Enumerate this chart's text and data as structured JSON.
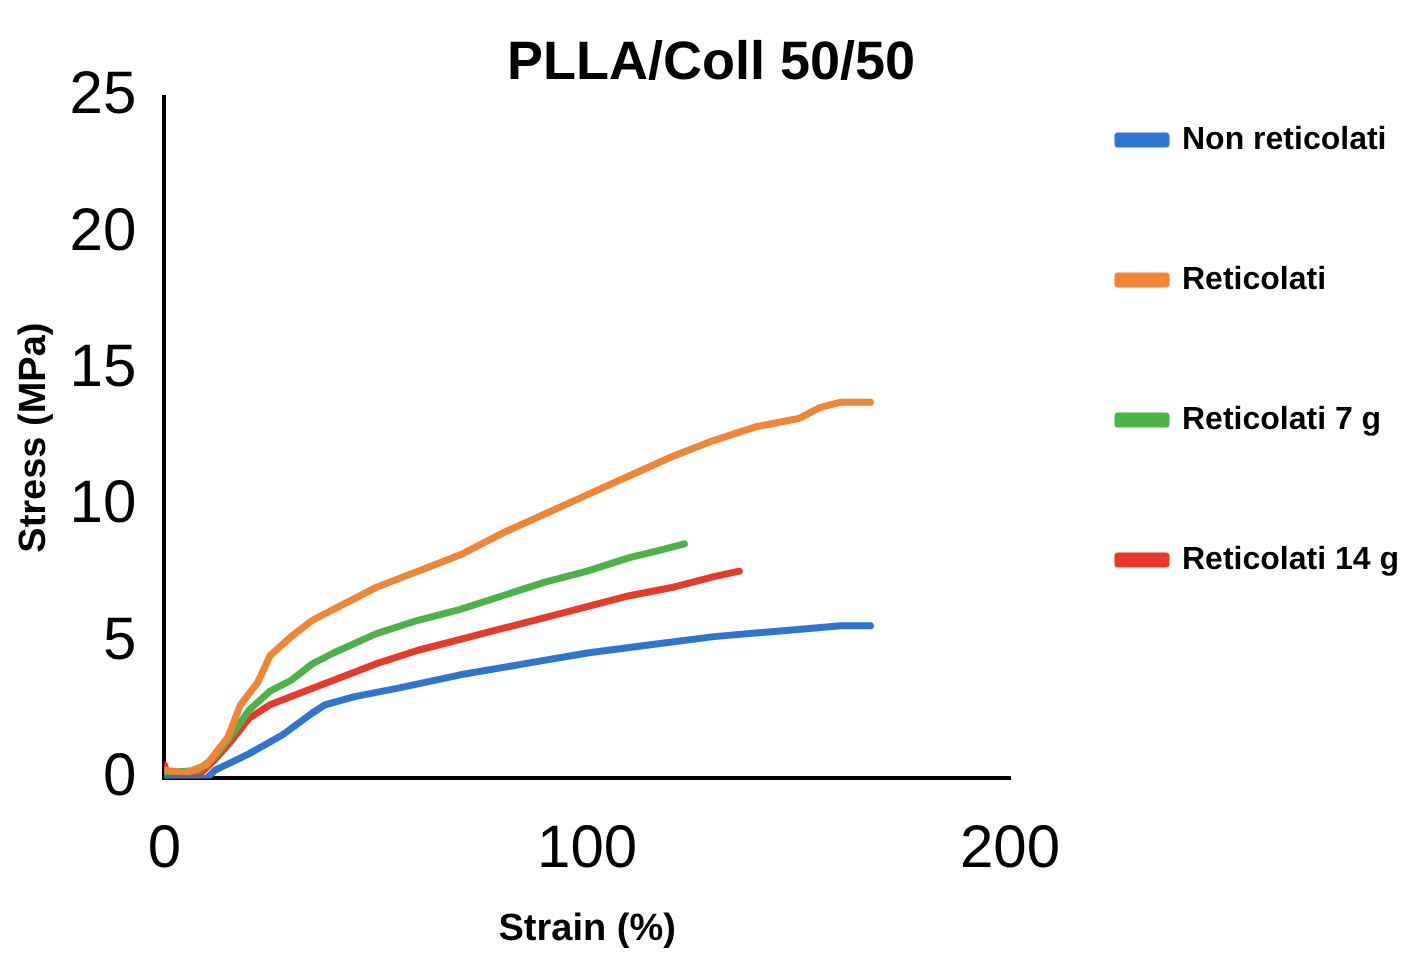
{
  "chart_data": {
    "type": "line",
    "title": "PLLA/Coll 50/50",
    "xlabel": "Strain (%)",
    "ylabel": "Stress (MPa)",
    "xlim": [
      0,
      200
    ],
    "xticks": [
      0,
      100,
      200
    ],
    "ylim": [
      0,
      25
    ],
    "yticks": [
      0,
      5,
      10,
      15,
      20,
      25
    ],
    "grid": false,
    "legend": "right",
    "marker": "none",
    "line_style": "solid",
    "series": [
      {
        "name": "Non reticolati",
        "color": "#2e75d0",
        "x": [
          0,
          10,
          12,
          20,
          28,
          35,
          38,
          45,
          55,
          70,
          85,
          100,
          115,
          130,
          145,
          160,
          167
        ],
        "values": [
          0,
          0,
          0.3,
          0.9,
          1.6,
          2.4,
          2.7,
          3,
          3.3,
          3.8,
          4.2,
          4.6,
          4.9,
          5.2,
          5.4,
          5.6,
          5.6
        ]
      },
      {
        "name": "Reticolati",
        "color": "#f08536",
        "x": [
          0,
          5,
          10,
          15,
          18,
          22,
          25,
          30,
          35,
          40,
          50,
          60,
          70,
          80,
          90,
          100,
          110,
          120,
          130,
          140,
          150,
          155,
          160,
          167
        ],
        "values": [
          0.3,
          0.2,
          0.5,
          1.5,
          2.7,
          3.5,
          4.5,
          5.2,
          5.8,
          6.2,
          7,
          7.6,
          8.2,
          9,
          9.7,
          10.4,
          11.1,
          11.8,
          12.4,
          12.9,
          13.2,
          13.6,
          13.8,
          13.8
        ]
      },
      {
        "name": "Reticolati 7 g",
        "color": "#4cb24a",
        "x": [
          0,
          8,
          12,
          16,
          20,
          25,
          30,
          35,
          40,
          50,
          60,
          70,
          80,
          90,
          100,
          110,
          118,
          123
        ],
        "values": [
          0.2,
          0.3,
          0.8,
          1.6,
          2.5,
          3.2,
          3.6,
          4.2,
          4.6,
          5.3,
          5.8,
          6.2,
          6.7,
          7.2,
          7.6,
          8.1,
          8.4,
          8.6
        ]
      },
      {
        "name": "Reticolati 14 g",
        "color": "#e8392a",
        "x": [
          0,
          1,
          8,
          12,
          16,
          20,
          25,
          30,
          40,
          50,
          60,
          70,
          80,
          90,
          100,
          110,
          120,
          130,
          136
        ],
        "values": [
          0.5,
          0,
          0.1,
          0.7,
          1.4,
          2.2,
          2.7,
          3,
          3.6,
          4.2,
          4.7,
          5.1,
          5.5,
          5.9,
          6.3,
          6.7,
          7,
          7.4,
          7.6
        ]
      }
    ]
  }
}
